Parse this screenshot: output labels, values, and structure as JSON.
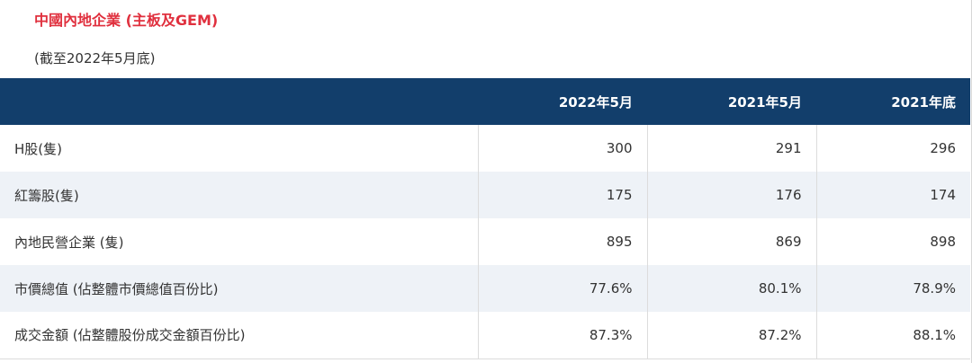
{
  "title": "中國內地企業 (主板及GEM)",
  "subtitle": "(截至2022年5月底)",
  "table": {
    "headers": [
      "",
      "2022年5月",
      "2021年5月",
      "2021年底"
    ],
    "rows": [
      {
        "label": "H股(隻)",
        "values": [
          "300",
          "291",
          "296"
        ]
      },
      {
        "label": "紅籌股(隻)",
        "values": [
          "175",
          "176",
          "174"
        ]
      },
      {
        "label": "內地民營企業 (隻)",
        "values": [
          "895",
          "869",
          "898"
        ]
      },
      {
        "label": "市價總值 (佔整體市價總值百份比)",
        "values": [
          "77.6%",
          "80.1%",
          "78.9%"
        ]
      },
      {
        "label": "成交金額 (佔整體股份成交金額百份比)",
        "values": [
          "87.3%",
          "87.2%",
          "88.1%"
        ]
      }
    ]
  },
  "colors": {
    "title": "#e0303e",
    "header_bg": "#123e6b",
    "alt_row_bg": "#eef2f7"
  }
}
